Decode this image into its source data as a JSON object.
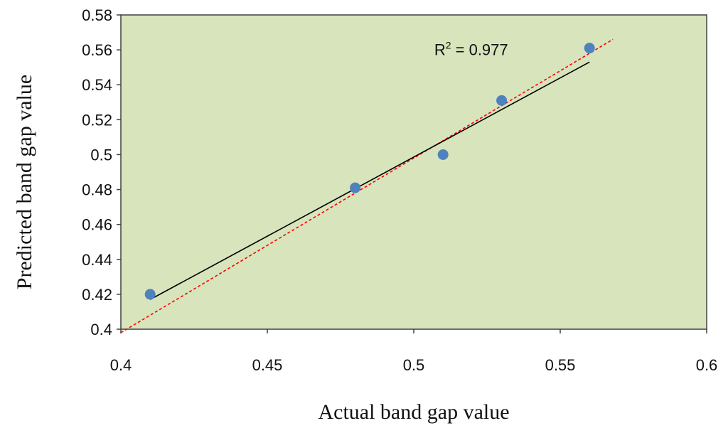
{
  "chart_data": {
    "type": "scatter",
    "xlabel": "Actual band gap value",
    "ylabel": "Predicted band gap value",
    "xlim": [
      0.4,
      0.6
    ],
    "ylim": [
      0.4,
      0.58
    ],
    "x_ticks": [
      0.4,
      0.45,
      0.5,
      0.55,
      0.6
    ],
    "y_ticks": [
      0.4,
      0.42,
      0.44,
      0.46,
      0.48,
      0.5,
      0.52,
      0.54,
      0.56,
      0.58
    ],
    "x_tick_labels": [
      "0.4",
      "0.45",
      "0.5",
      "0.55",
      "0.6"
    ],
    "y_tick_labels": [
      "0.4",
      "0.42",
      "0.44",
      "0.46",
      "0.48",
      "0.5",
      "0.52",
      "0.54",
      "0.56",
      "0.58"
    ],
    "points": [
      {
        "x": 0.41,
        "y": 0.42
      },
      {
        "x": 0.48,
        "y": 0.481
      },
      {
        "x": 0.51,
        "y": 0.5
      },
      {
        "x": 0.53,
        "y": 0.531
      },
      {
        "x": 0.56,
        "y": 0.561
      }
    ],
    "trendline": {
      "from": {
        "x": 0.41,
        "y": 0.417
      },
      "to": {
        "x": 0.56,
        "y": 0.553
      }
    },
    "reference_line": {
      "from": {
        "x": 0.4,
        "y": 0.398
      },
      "to": {
        "x": 0.568,
        "y": 0.566
      }
    },
    "annotation": {
      "r_label": "R",
      "superscript": "2",
      "value_text": " = 0.977",
      "anchor": {
        "x": 0.507,
        "y": 0.557
      }
    },
    "grid": false,
    "legend": "none",
    "colors": {
      "plot_background": "#d8e4bc",
      "points": "#4f81bd",
      "trendline": "#000000",
      "reference_line": "#ff0000",
      "axes": "#404040"
    }
  }
}
